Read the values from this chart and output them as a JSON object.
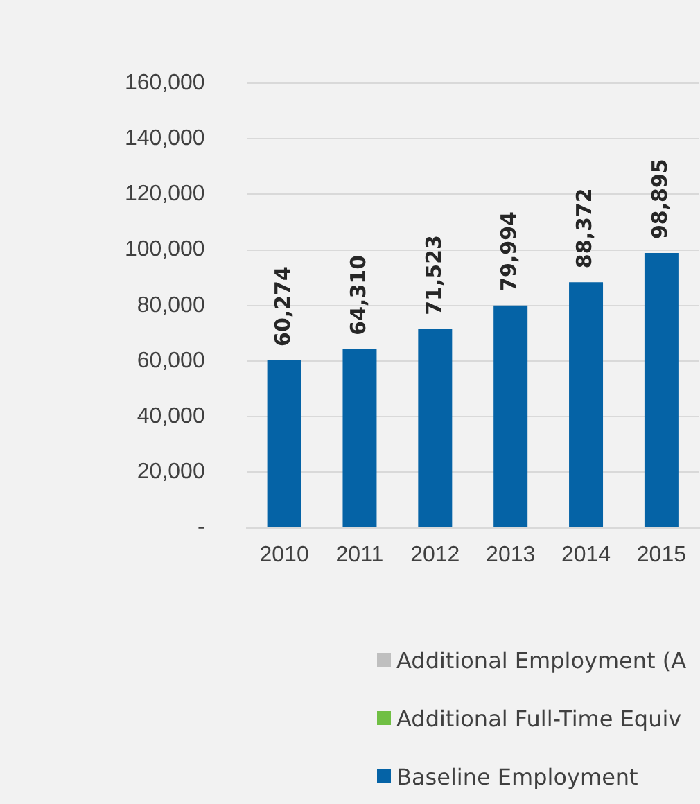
{
  "chart_data": {
    "type": "bar",
    "stacked": true,
    "categories": [
      "2010",
      "2011",
      "2012",
      "2013",
      "2014",
      "2015"
    ],
    "series": [
      {
        "name": "Baseline Employment",
        "color": "#0563a6",
        "values": [
          60274,
          64310,
          71523,
          79994,
          88372,
          98895
        ],
        "value_labels": [
          "60,274",
          "64,310",
          "71,523",
          "79,994",
          "88,372",
          "98,895"
        ]
      },
      {
        "name": "Additional Full-Time Equiv",
        "color": "#70bf44",
        "values": [
          null,
          null,
          null,
          null,
          null,
          null
        ]
      },
      {
        "name": "Additional Employment (A",
        "color": "#bfbfbf",
        "values": [
          null,
          null,
          null,
          null,
          null,
          null
        ]
      }
    ],
    "ylim": [
      0,
      160000
    ],
    "yticks": [
      {
        "value": 0,
        "label": "-"
      },
      {
        "value": 20000,
        "label": "20,000"
      },
      {
        "value": 40000,
        "label": "40,000"
      },
      {
        "value": 60000,
        "label": "60,000"
      },
      {
        "value": 80000,
        "label": "80,000"
      },
      {
        "value": 100000,
        "label": "100,000"
      },
      {
        "value": 120000,
        "label": "120,000"
      },
      {
        "value": 140000,
        "label": "140,000"
      },
      {
        "value": 160000,
        "label": "160,000"
      }
    ],
    "grid": "y",
    "legend": "bottom"
  }
}
